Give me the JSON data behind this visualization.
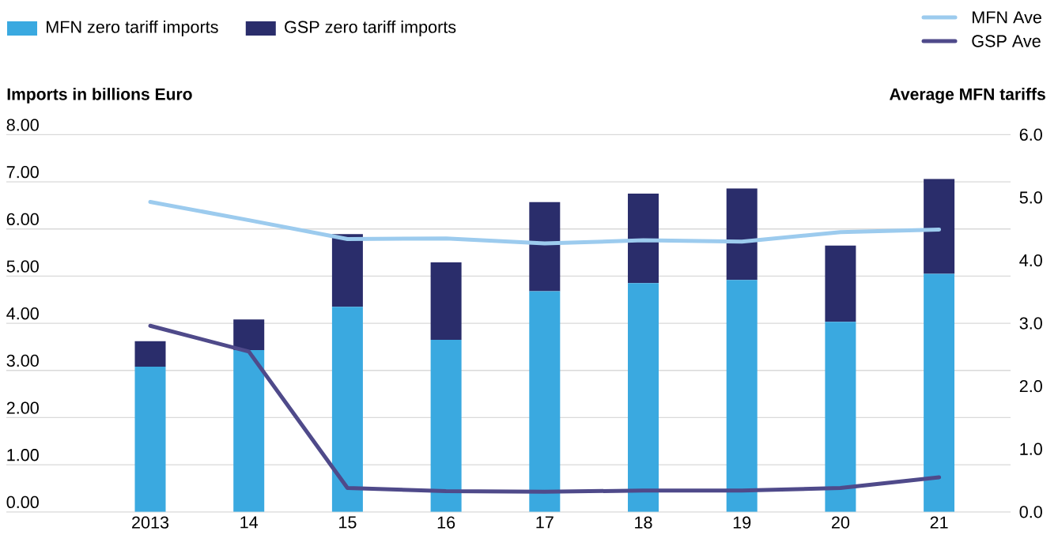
{
  "chart_data": {
    "type": "bar",
    "stacked": true,
    "categories": [
      "2013",
      "14",
      "15",
      "16",
      "17",
      "18",
      "19",
      "20",
      "21"
    ],
    "ylabel": "Imports in billions Euro",
    "y2label": "Average MFN tariffs",
    "series": [
      {
        "name": "MFN zero tariff imports",
        "color": "#3aa9e0",
        "values": [
          3.08,
          3.43,
          4.35,
          3.65,
          4.68,
          4.85,
          4.92,
          4.03,
          5.05
        ]
      },
      {
        "name": "GSP zero tariff imports",
        "color": "#2a2d6b",
        "values": [
          0.54,
          0.65,
          1.54,
          1.64,
          1.89,
          1.9,
          1.94,
          1.62,
          2.01
        ]
      },
      {
        "name": "MFN Ave",
        "type": "line",
        "axis": "y2",
        "color": "#9ccbee",
        "values": [
          4.93,
          4.64,
          4.34,
          4.35,
          4.27,
          4.32,
          4.3,
          4.45,
          4.49
        ]
      },
      {
        "name": "GSP Ave",
        "type": "line",
        "axis": "y2",
        "color": "#4f4a8a",
        "values": [
          2.96,
          2.55,
          0.38,
          0.33,
          0.32,
          0.34,
          0.34,
          0.38,
          0.55
        ]
      }
    ],
    "ylim": [
      0,
      8
    ],
    "yticks": [
      {
        "value": 0,
        "label": "0.00"
      },
      {
        "value": 1,
        "label": "1.00"
      },
      {
        "value": 2,
        "label": "2.00"
      },
      {
        "value": 3,
        "label": "3.00"
      },
      {
        "value": 4,
        "label": "4.00"
      },
      {
        "value": 5,
        "label": "5.00"
      },
      {
        "value": 6,
        "label": "6.00"
      },
      {
        "value": 7,
        "label": "7.00"
      },
      {
        "value": 8,
        "label": "8.00"
      }
    ],
    "y2lim": [
      0,
      6
    ],
    "y2ticks": [
      {
        "value": 0,
        "label": "0.0"
      },
      {
        "value": 1,
        "label": "1.0"
      },
      {
        "value": 2,
        "label": "2.0"
      },
      {
        "value": 3,
        "label": "3.0"
      },
      {
        "value": 4,
        "label": "4.0"
      },
      {
        "value": 5,
        "label": "5.0"
      },
      {
        "value": 6,
        "label": "6.0"
      }
    ],
    "grid": "y",
    "legend": "top"
  }
}
